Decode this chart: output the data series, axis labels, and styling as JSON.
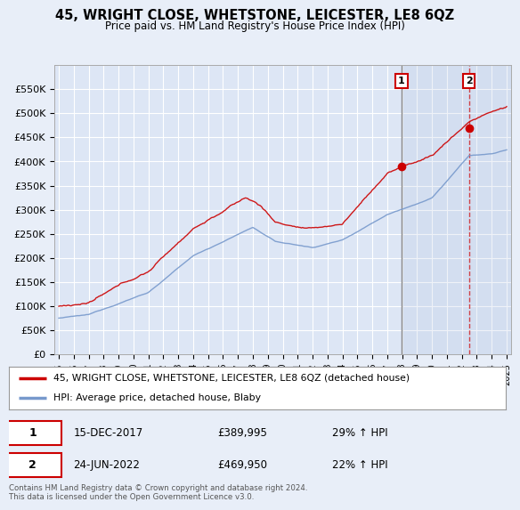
{
  "title": "45, WRIGHT CLOSE, WHETSTONE, LEICESTER, LE8 6QZ",
  "subtitle": "Price paid vs. HM Land Registry's House Price Index (HPI)",
  "background_color": "#e8eef8",
  "plot_bg": "#dde6f5",
  "hpi_color": "#7799cc",
  "price_color": "#cc0000",
  "sale1_date_label": "15-DEC-2017",
  "sale1_price": 389995,
  "sale1_hpi_pct": "29% ↑ HPI",
  "sale1_year": 2017.96,
  "sale2_date_label": "24-JUN-2022",
  "sale2_price": 469950,
  "sale2_hpi_pct": "22% ↑ HPI",
  "sale2_year": 2022.48,
  "legend_label1": "45, WRIGHT CLOSE, WHETSTONE, LEICESTER, LE8 6QZ (detached house)",
  "legend_label2": "HPI: Average price, detached house, Blaby",
  "footer": "Contains HM Land Registry data © Crown copyright and database right 2024.\nThis data is licensed under the Open Government Licence v3.0.",
  "ylim": [
    0,
    600000
  ],
  "yticks": [
    0,
    50000,
    100000,
    150000,
    200000,
    250000,
    300000,
    350000,
    400000,
    450000,
    500000,
    550000
  ],
  "xlim_start": 1994.7,
  "xlim_end": 2025.3
}
